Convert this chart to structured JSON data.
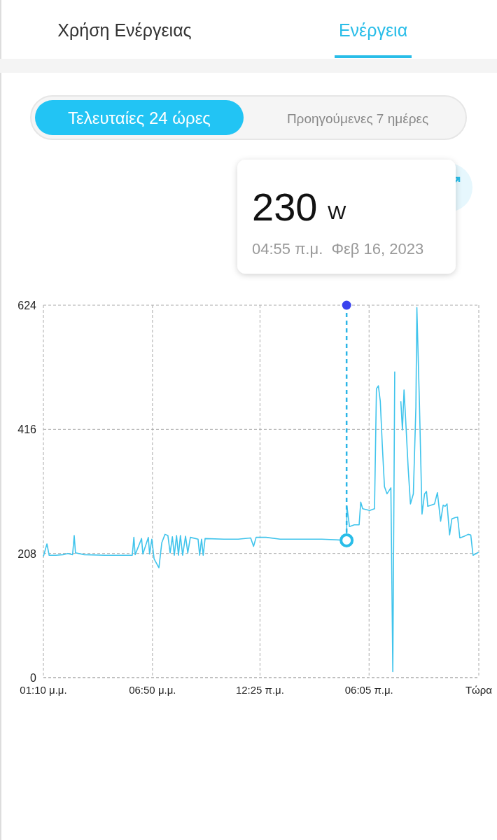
{
  "chart_data": {
    "type": "line",
    "annotations": [
      "Χρήση Ενέργειας",
      "Ενέργεια",
      "Τελευταίες 24 ώρες",
      "Προηγούμενες 7 ημέρες",
      "230",
      "W",
      "04:55 π.μ.  Φεβ 16, 2023"
    ],
    "x": [
      "2023-02-15T13:10",
      "2023-02-15T13:21",
      "2023-02-15T13:28",
      "2023-02-15T13:49",
      "2023-02-15T14:11",
      "2023-02-15T14:26",
      "2023-02-15T14:41",
      "2023-02-15T14:46",
      "2023-02-15T14:50",
      "2023-02-15T15:17",
      "2023-02-15T16:22",
      "2023-02-15T17:28",
      "2023-02-15T17:47",
      "2023-02-15T17:52",
      "2023-02-15T17:56",
      "2023-02-15T18:16",
      "2023-02-15T18:20",
      "2023-02-15T18:37",
      "2023-02-15T18:41",
      "2023-02-15T18:48",
      "2023-02-15T18:55",
      "2023-02-15T19:10",
      "2023-02-15T19:19",
      "2023-02-15T19:29",
      "2023-02-15T19:38",
      "2023-02-15T19:45",
      "2023-02-15T19:52",
      "2023-02-15T19:58",
      "2023-02-15T20:05",
      "2023-02-15T20:11",
      "2023-02-15T20:17",
      "2023-02-15T20:24",
      "2023-02-15T20:33",
      "2023-02-15T20:40",
      "2023-02-15T20:48",
      "2023-02-15T21:12",
      "2023-02-15T21:17",
      "2023-02-15T21:23",
      "2023-02-15T21:28",
      "2023-02-15T21:34",
      "2023-02-15T22:33",
      "2023-02-15T23:17",
      "2023-02-15T23:56",
      "2023-02-16T00:05",
      "2023-02-16T00:13",
      "2023-02-16T00:44",
      "2023-02-16T01:28",
      "2023-02-16T02:33",
      "2023-02-16T03:38",
      "2023-02-16T04:55",
      "2023-02-16T04:56",
      "2023-02-16T05:04",
      "2023-02-16T05:19",
      "2023-02-16T05:34",
      "2023-02-16T05:39",
      "2023-02-16T05:45",
      "2023-02-16T06:07",
      "2023-02-16T06:22",
      "2023-02-16T06:28",
      "2023-02-16T06:34",
      "2023-02-16T06:40",
      "2023-02-16T06:46",
      "2023-02-16T06:53",
      "2023-02-16T07:01",
      "2023-02-16T07:13",
      "2023-02-16T07:19",
      "2023-02-16T07:25",
      "2023-02-16T07:33",
      "2023-02-16T07:44",
      "2023-02-16T07:49",
      "2023-02-16T07:54",
      "2023-02-16T07:59",
      "2023-02-16T08:07",
      "2023-02-16T08:14",
      "2023-02-16T08:23",
      "2023-02-16T08:31",
      "2023-02-16T08:34",
      "2023-02-16T08:42",
      "2023-02-16T08:50",
      "2023-02-16T08:58",
      "2023-02-16T09:04",
      "2023-02-16T09:08",
      "2023-02-16T09:29",
      "2023-02-16T09:38",
      "2023-02-16T09:48",
      "2023-02-16T09:56",
      "2023-02-16T10:02",
      "2023-02-16T10:08",
      "2023-02-16T10:16",
      "2023-02-16T10:23",
      "2023-02-16T10:33",
      "2023-02-16T10:41",
      "2023-02-16T10:48",
      "2023-02-16T11:02",
      "2023-02-16T11:14",
      "2023-02-16T11:22",
      "2023-02-16T11:29",
      "2023-02-16T11:46"
    ],
    "series": [
      {
        "color": "#40c4ec",
        "values": [
          203,
          224,
          205,
          205,
          206,
          208,
          206,
          238,
          209,
          206,
          205,
          205,
          205,
          235,
          206,
          233,
          207,
          235,
          207,
          232,
          199,
          184,
          226,
          240,
          238,
          209,
          236,
          205,
          238,
          205,
          238,
          205,
          237,
          209,
          235,
          232,
          205,
          232,
          205,
          233,
          232,
          232,
          234,
          220,
          235,
          235,
          232,
          232,
          232,
          230,
          287,
          253,
          256,
          256,
          294,
          283,
          280,
          283,
          484,
          489,
          463,
          392,
          320,
          308,
          318,
          10,
          513,
          null,
          463,
          415,
          482,
          433,
          350,
          291,
          308,
          454,
          620,
          459,
          274,
          308,
          312,
          287,
          291,
          310,
          262,
          289,
          287,
          291,
          239,
          266,
          268,
          269,
          234,
          237,
          240,
          239,
          205,
          210
        ]
      }
    ],
    "xlim": [
      "2023-02-15T13:10",
      "2023-02-16T11:47"
    ],
    "xticks": [
      {
        "value": "2023-02-15T13:10",
        "label": "01:10 μ.μ."
      },
      {
        "value": "2023-02-15T18:50",
        "label": "06:50 μ.μ."
      },
      {
        "value": "2023-02-16T00:25",
        "label": "12:25 π.μ."
      },
      {
        "value": "2023-02-16T06:05",
        "label": "06:05 π.μ."
      },
      {
        "value": "2023-02-16T11:47",
        "label": "Τώρα"
      }
    ],
    "ylim": [
      0,
      624
    ],
    "yticks": [
      0,
      208,
      416,
      624
    ],
    "grid": true,
    "marker": "none",
    "line_style": "solid",
    "ref_lines": [
      {
        "axis": "x",
        "value": "2023-02-16T04:55",
        "color": "#2bb5e6",
        "line_style": "dashed"
      }
    ]
  }
}
